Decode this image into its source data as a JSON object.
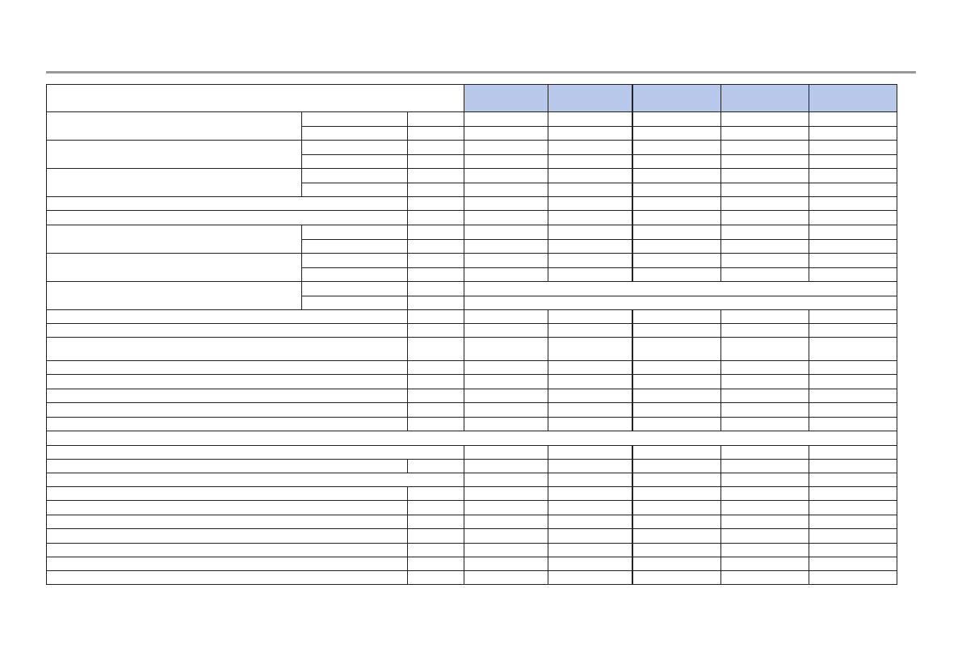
{
  "document": {
    "header_fill_color": "#b8c8ea",
    "rule_color": "#999999",
    "border_color": "#222222",
    "cells_text": "none visible"
  }
}
